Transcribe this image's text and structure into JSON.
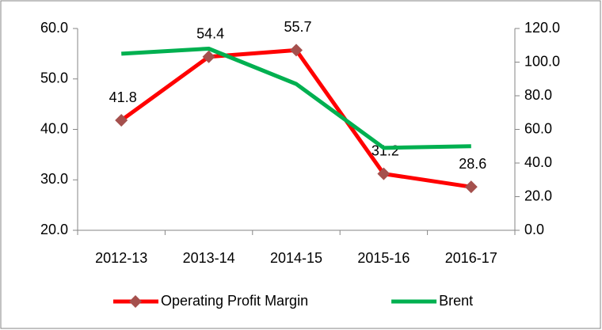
{
  "chart_data": {
    "type": "line",
    "categories": [
      "2012-13",
      "2013-14",
      "2014-15",
      "2015-16",
      "2016-17"
    ],
    "series": [
      {
        "name": "Operating Profit Margin",
        "color": "#ff0000",
        "marker_color": "#a5504d",
        "marker": "diamond",
        "values": [
          41.8,
          54.4,
          55.7,
          31.2,
          28.6
        ],
        "data_labels": true
      },
      {
        "name": "Brent",
        "color": "#00b050",
        "axis": "y2",
        "values": [
          105,
          108,
          87,
          49,
          50
        ]
      }
    ],
    "ylim": [
      20,
      60
    ],
    "yticks": [
      {
        "value": 20,
        "label": "20.0"
      },
      {
        "value": 30,
        "label": "30.0"
      },
      {
        "value": 40,
        "label": "40.0"
      },
      {
        "value": 50,
        "label": "50.0"
      },
      {
        "value": 60,
        "label": "60.0"
      }
    ],
    "y2lim": [
      0,
      120
    ],
    "y2ticks": [
      {
        "value": 0,
        "label": "0.0"
      },
      {
        "value": 20,
        "label": "20.0"
      },
      {
        "value": 40,
        "label": "40.0"
      },
      {
        "value": 60,
        "label": "60.0"
      },
      {
        "value": 80,
        "label": "80.0"
      },
      {
        "value": 100,
        "label": "100.0"
      },
      {
        "value": 120,
        "label": "120.0"
      }
    ],
    "legend": "bottom",
    "grid": false
  }
}
